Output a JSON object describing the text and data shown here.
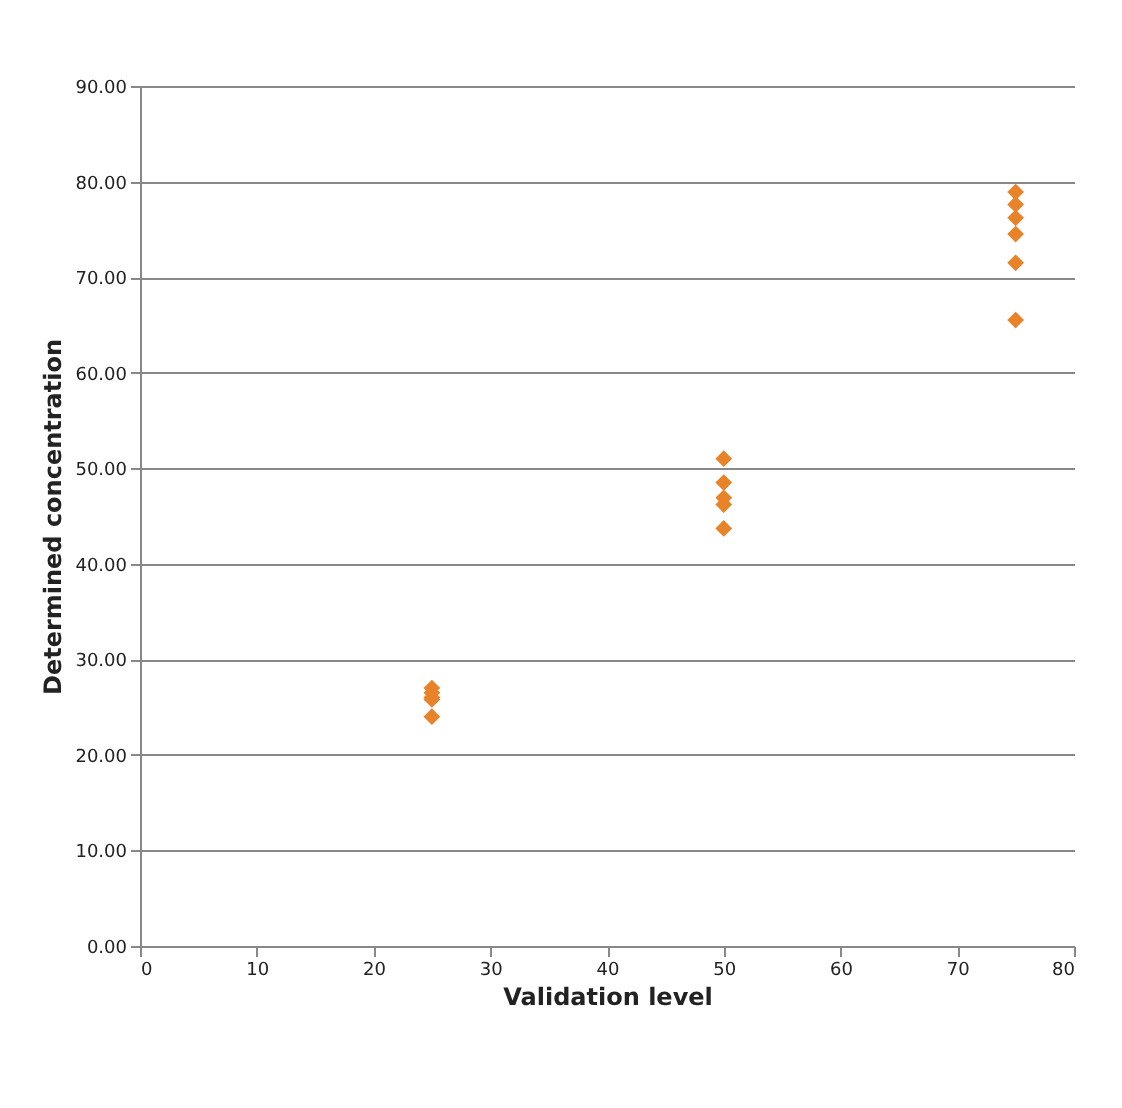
{
  "chart_data": {
    "type": "scatter",
    "xlabel": "Validation level",
    "ylabel": "Determined concentration",
    "x": [
      25,
      25,
      25,
      25,
      25,
      50,
      50,
      50,
      50,
      50,
      75,
      75,
      75,
      75,
      75,
      75
    ],
    "series": [
      {
        "color": "#e8832a",
        "values": [
          27.0,
          26.5,
          26.0,
          25.8,
          24.0,
          51.0,
          48.5,
          46.9,
          46.2,
          43.7,
          78.9,
          77.6,
          76.2,
          74.5,
          71.5,
          65.5
        ]
      }
    ],
    "xlim": [
      0,
      80
    ],
    "xticks": [
      0,
      10,
      20,
      30,
      40,
      50,
      60,
      70,
      80
    ],
    "ylim": [
      0,
      90
    ],
    "yticks": [
      {
        "value": 0,
        "label": "0.00"
      },
      {
        "value": 10,
        "label": "10.00"
      },
      {
        "value": 20,
        "label": "20.00"
      },
      {
        "value": 30,
        "label": "30.00"
      },
      {
        "value": 40,
        "label": "40.00"
      },
      {
        "value": 50,
        "label": "50.00"
      },
      {
        "value": 60,
        "label": "60.00"
      },
      {
        "value": 70,
        "label": "70.00"
      },
      {
        "value": 80,
        "label": "80.00"
      },
      {
        "value": 90,
        "label": "90.00"
      }
    ],
    "grid": "y",
    "marker": "diamond"
  }
}
